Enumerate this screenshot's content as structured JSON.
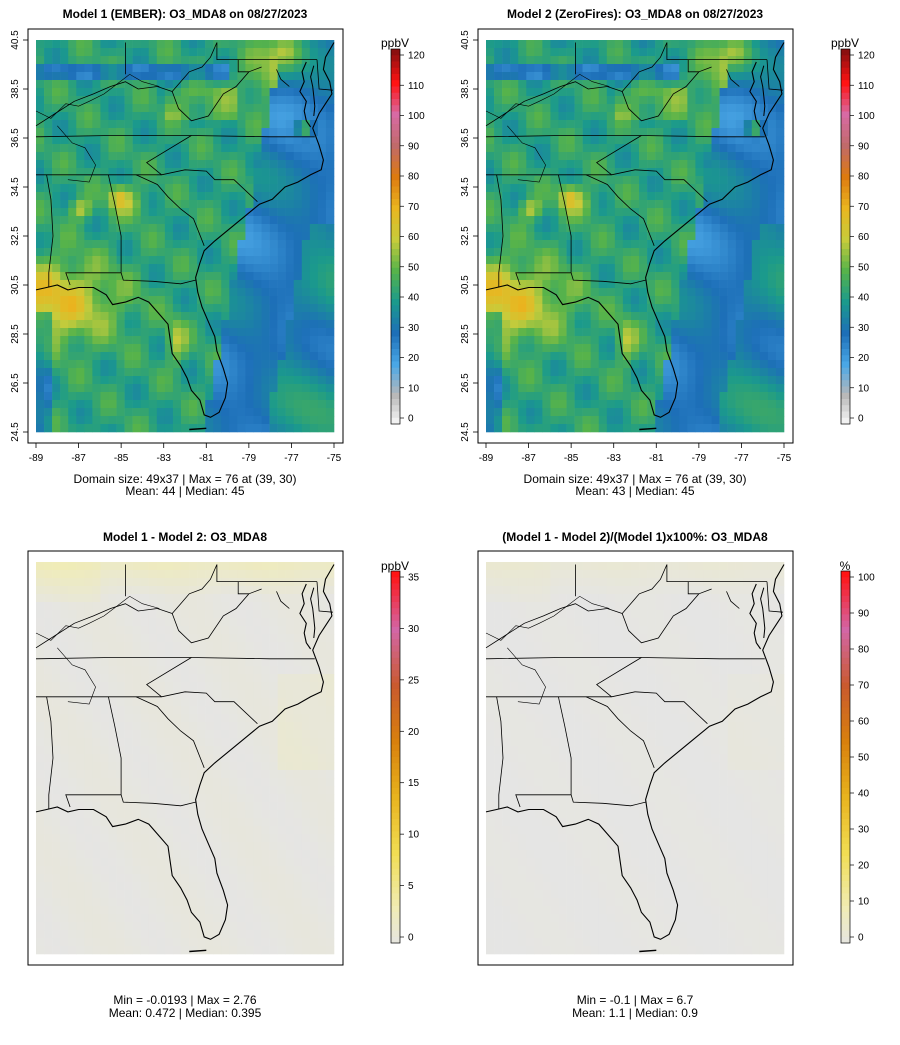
{
  "panels": [
    {
      "id": "m1",
      "title": "Model 1 (EMBER): O3_MDA8 on 08/27/2023",
      "unit": "ppbV",
      "show_axes": true,
      "x_ticks": [
        "-89",
        "-87",
        "-85",
        "-83",
        "-81",
        "-79",
        "-77",
        "-75"
      ],
      "y_ticks": [
        "24.5",
        "26.5",
        "28.5",
        "30.5",
        "32.5",
        "34.5",
        "36.5",
        "38.5",
        "40.5"
      ],
      "legend_ticks": [
        "0",
        "10",
        "20",
        "30",
        "40",
        "50",
        "60",
        "70",
        "80",
        "90",
        "100",
        "110",
        "120"
      ],
      "legend_min": 0,
      "legend_max": 120,
      "stats": [
        "Domain size: 49x37 | Max = 76 at (39, 30)",
        "Mean: 44 |  Median: 45"
      ],
      "colormap": "conc",
      "variant": "m1"
    },
    {
      "id": "m2",
      "title": "Model 2 (ZeroFires): O3_MDA8 on 08/27/2023",
      "unit": "ppbV",
      "show_axes": true,
      "x_ticks": [
        "-89",
        "-87",
        "-85",
        "-83",
        "-81",
        "-79",
        "-77",
        "-75"
      ],
      "y_ticks": [
        "24.5",
        "26.5",
        "28.5",
        "30.5",
        "32.5",
        "34.5",
        "36.5",
        "38.5",
        "40.5"
      ],
      "legend_ticks": [
        "0",
        "10",
        "20",
        "30",
        "40",
        "50",
        "60",
        "70",
        "80",
        "90",
        "100",
        "110",
        "120"
      ],
      "legend_min": 0,
      "legend_max": 120,
      "stats": [
        "Domain size: 49x37 | Max = 76 at (39, 30)",
        "Mean: 43 |  Median: 45"
      ],
      "colormap": "conc",
      "variant": "m2"
    },
    {
      "id": "diff",
      "title": "Model 1 - Model 2: O3_MDA8",
      "unit": "ppbV",
      "show_axes": false,
      "x_ticks": [],
      "y_ticks": [],
      "legend_ticks": [
        "0",
        "5",
        "10",
        "15",
        "20",
        "25",
        "30",
        "35"
      ],
      "legend_min": 0,
      "legend_max": 35,
      "stats": [
        "Min = -0.0193 | Max = 2.76",
        "Mean: 0.472 |  Median: 0.395"
      ],
      "colormap": "diff",
      "variant": "diff"
    },
    {
      "id": "pct",
      "title": "(Model 1 - Model 2)/(Model 1)x100%: O3_MDA8",
      "unit": "%",
      "show_axes": false,
      "x_ticks": [],
      "y_ticks": [],
      "legend_ticks": [
        "0",
        "10",
        "20",
        "30",
        "40",
        "50",
        "60",
        "70",
        "80",
        "90",
        "100"
      ],
      "legend_min": 0,
      "legend_max": 100,
      "stats": [
        "Min = -0.1 | Max = 6.7",
        "Mean: 1.1 |  Median: 0.9"
      ],
      "colormap": "diff",
      "variant": "pct"
    }
  ],
  "map_extent": {
    "lon": [
      -89,
      -75
    ],
    "lat": [
      24.5,
      40.5
    ]
  },
  "grid": {
    "cols": 37,
    "rows": 49
  }
}
